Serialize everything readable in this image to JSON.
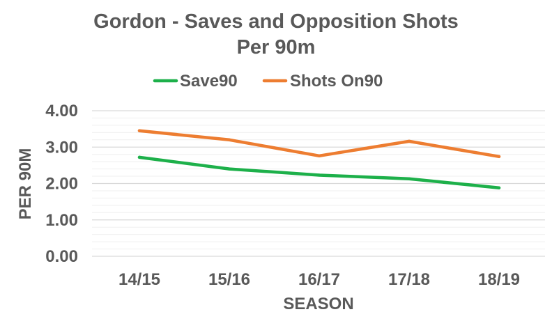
{
  "chart_data": {
    "type": "line",
    "title": "Gordon - Saves and Opposition Shots",
    "subtitle": "Per 90m",
    "xlabel": "SEASON",
    "ylabel": "PER 90M",
    "categories": [
      "14/15",
      "15/16",
      "16/17",
      "17/18",
      "18/19"
    ],
    "ylim": [
      0,
      4
    ],
    "yticks": [
      "0.00",
      "1.00",
      "2.00",
      "3.00",
      "4.00"
    ],
    "grid": true,
    "legend_position": "top",
    "series": [
      {
        "name": "Save90",
        "color": "#1DB04A",
        "values": [
          2.72,
          2.4,
          2.23,
          2.13,
          1.88
        ]
      },
      {
        "name": "Shots On90",
        "color": "#ED7D31",
        "values": [
          3.45,
          3.2,
          2.76,
          3.16,
          2.74
        ]
      }
    ]
  }
}
